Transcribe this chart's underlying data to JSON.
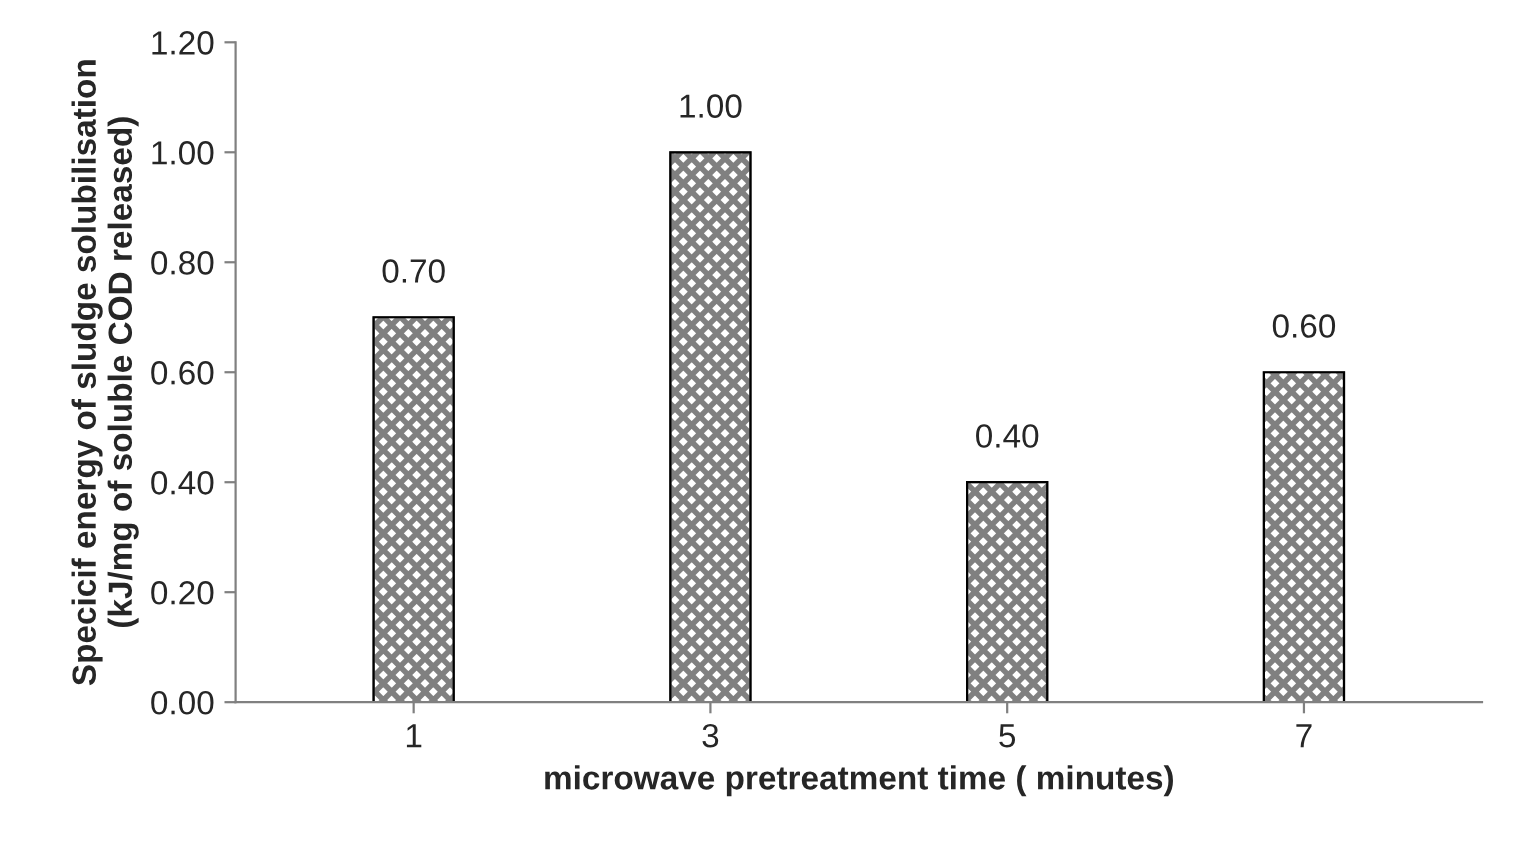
{
  "chart_data": {
    "type": "bar",
    "xlabel": "microwave pretreatment time ( minutes)",
    "ylabel": "Specicif energy of sludge solubilisation\n(kJ/mg of soluble COD released)",
    "categories": [
      "1",
      "3",
      "5",
      "7"
    ],
    "values": [
      0.7,
      1.0,
      0.4,
      0.6
    ],
    "value_labels": [
      "0.70",
      "1.00",
      "0.40",
      "0.60"
    ],
    "color": "#808080",
    "ylim": [
      0,
      1.2
    ],
    "yticks": [
      {
        "value": 0,
        "label": "0.00"
      },
      {
        "value": 0.2,
        "label": "0.20"
      },
      {
        "value": 0.4,
        "label": "0.40"
      },
      {
        "value": 0.6,
        "label": "0.60"
      },
      {
        "value": 0.8,
        "label": "0.80"
      },
      {
        "value": 1.0,
        "label": "1.00"
      },
      {
        "value": 1.2,
        "label": "1.20"
      }
    ],
    "grid": false
  }
}
